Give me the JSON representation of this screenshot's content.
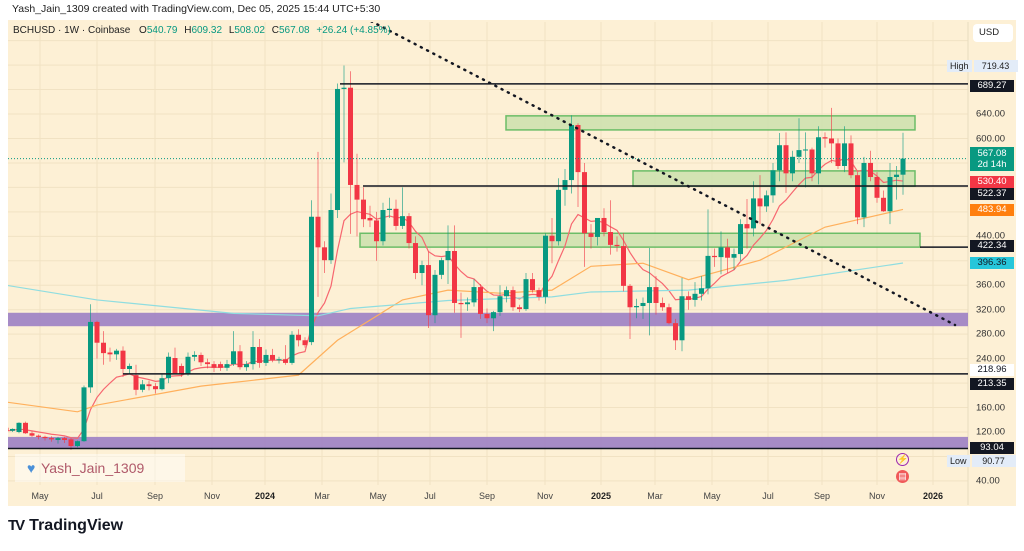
{
  "credit": "Yash_Jain_1309 created with TradingView.com, Dec 05, 2025 15:44 UTC+5:30",
  "legend": {
    "symbol": "BCHUSD · 1W · Coinbase",
    "open_label": "O",
    "open": "540.79",
    "high_label": "H",
    "high": "609.32",
    "low_label": "L",
    "low": "508.02",
    "close_label": "C",
    "close": "567.08",
    "change": "+26.24 (+4.85%)"
  },
  "currency_button": "USD",
  "watermark": "Yash_Jain_1309",
  "brand": "TradingView",
  "colors": {
    "up": "#089981",
    "down": "#f23645",
    "background": "#fdf0d5",
    "ema_fast": "#f7666f",
    "ema_mid": "#ffb05c",
    "ma_long": "#8fdde0",
    "zone_purple": "#9c7fc4",
    "zone_green": "#cfe2b0"
  },
  "price_axis": {
    "ticks": [
      "640.00",
      "600.00",
      "440.00",
      "360.00",
      "320.00",
      "280.00",
      "240.00",
      "160.00",
      "120.00",
      "40.00"
    ]
  },
  "time_axis": {
    "ticks": [
      "May",
      "Jul",
      "Sep",
      "Nov",
      "2024",
      "Mar",
      "May",
      "Jul",
      "Sep",
      "Nov",
      "2025",
      "Mar",
      "May",
      "Jul",
      "Sep",
      "Nov",
      "2026"
    ]
  },
  "price_labels": {
    "high_tag": "High",
    "high_value": "719.43",
    "low_tag": "Low",
    "low_value": "90.77",
    "level_689": "689.27",
    "last_price": "567.08",
    "countdown": "2d 14h",
    "ema_fast": "530.40",
    "level_522": "522.37",
    "ema_mid": "483.94",
    "level_422": "422.34",
    "ma_long": "396.36",
    "level_219": "218.96",
    "level_213": "213.35",
    "level_93": "93.04"
  },
  "chart_data": {
    "type": "candlestick",
    "title": "BCHUSD · 1W · Coinbase",
    "interval": "1W",
    "ylim": [
      40,
      760
    ],
    "grid": true,
    "candles_ohlc": [
      [
        127,
        130,
        119,
        122
      ],
      [
        122,
        126,
        120,
        125
      ],
      [
        120,
        136,
        118,
        135
      ],
      [
        135,
        137,
        117,
        118
      ],
      [
        118,
        121,
        112,
        114
      ],
      [
        114,
        116,
        108,
        112
      ],
      [
        112,
        114,
        106,
        110
      ],
      [
        110,
        113,
        104,
        108
      ],
      [
        107,
        112,
        101,
        110
      ],
      [
        110,
        112,
        102,
        107
      ],
      [
        108,
        110,
        90.77,
        97
      ],
      [
        97,
        106,
        95,
        105
      ],
      [
        105,
        196,
        104,
        193
      ],
      [
        193,
        329,
        184,
        300
      ],
      [
        300,
        302,
        240,
        266
      ],
      [
        266,
        285,
        230,
        249
      ],
      [
        250,
        258,
        235,
        247
      ],
      [
        247,
        256,
        238,
        253
      ],
      [
        253,
        260,
        210,
        223
      ],
      [
        223,
        232,
        215,
        228
      ],
      [
        213,
        230,
        180,
        189
      ],
      [
        189,
        205,
        185,
        198
      ],
      [
        198,
        204,
        188,
        195
      ],
      [
        195,
        200,
        183,
        190
      ],
      [
        190,
        215,
        188,
        208
      ],
      [
        208,
        250,
        200,
        243
      ],
      [
        241,
        258,
        214,
        216
      ],
      [
        228,
        232,
        210,
        215
      ],
      [
        215,
        250,
        212,
        243
      ],
      [
        243,
        252,
        236,
        246
      ],
      [
        246,
        250,
        228,
        234
      ],
      [
        234,
        240,
        224,
        231
      ],
      [
        231,
        236,
        218,
        225
      ],
      [
        231,
        235,
        220,
        225
      ],
      [
        225,
        238,
        220,
        231
      ],
      [
        231,
        285,
        228,
        252
      ],
      [
        252,
        262,
        222,
        226
      ],
      [
        226,
        236,
        220,
        231
      ],
      [
        231,
        285,
        222,
        259
      ],
      [
        259,
        272,
        225,
        233
      ],
      [
        233,
        255,
        228,
        246
      ],
      [
        246,
        256,
        234,
        238
      ],
      [
        238,
        243,
        232,
        239
      ],
      [
        239,
        262,
        230,
        233
      ],
      [
        233,
        285,
        230,
        279
      ],
      [
        279,
        288,
        260,
        270
      ],
      [
        270,
        275,
        258,
        262
      ],
      [
        267,
        499,
        262,
        472
      ],
      [
        472,
        578,
        341,
        422
      ],
      [
        422,
        432,
        380,
        401
      ],
      [
        401,
        510,
        395,
        483
      ],
      [
        483,
        690,
        470,
        681
      ],
      [
        681,
        719.43,
        561,
        683
      ],
      [
        683,
        710,
        444,
        524
      ],
      [
        524,
        575,
        440,
        500
      ],
      [
        500,
        520,
        455,
        468
      ],
      [
        470,
        490,
        455,
        466
      ],
      [
        466,
        480,
        400,
        432
      ],
      [
        432,
        495,
        425,
        483
      ],
      [
        483,
        503,
        470,
        485
      ],
      [
        485,
        500,
        450,
        457
      ],
      [
        457,
        520,
        452,
        473
      ],
      [
        473,
        478,
        420,
        429
      ],
      [
        429,
        440,
        370,
        380
      ],
      [
        380,
        400,
        360,
        393
      ],
      [
        393,
        415,
        290,
        311
      ],
      [
        311,
        385,
        298,
        377
      ],
      [
        377,
        405,
        370,
        401
      ],
      [
        401,
        458,
        362,
        416
      ],
      [
        416,
        458,
        315,
        331
      ],
      [
        331,
        348,
        274,
        329
      ],
      [
        329,
        340,
        318,
        332
      ],
      [
        332,
        370,
        325,
        357
      ],
      [
        357,
        362,
        305,
        313
      ],
      [
        313,
        322,
        298,
        306
      ],
      [
        306,
        318,
        285,
        316
      ],
      [
        316,
        360,
        310,
        342
      ],
      [
        342,
        358,
        332,
        352
      ],
      [
        352,
        358,
        318,
        324
      ],
      [
        324,
        328,
        316,
        321
      ],
      [
        321,
        380,
        318,
        370
      ],
      [
        370,
        380,
        348,
        352
      ],
      [
        352,
        356,
        335,
        341
      ],
      [
        341,
        445,
        330,
        441
      ],
      [
        441,
        470,
        396,
        432
      ],
      [
        432,
        535,
        425,
        516
      ],
      [
        516,
        550,
        490,
        532
      ],
      [
        532,
        638,
        510,
        622
      ],
      [
        622,
        625,
        488,
        545
      ],
      [
        545,
        560,
        390,
        445
      ],
      [
        445,
        460,
        420,
        439
      ],
      [
        439,
        470,
        425,
        470
      ],
      [
        470,
        486,
        440,
        447
      ],
      [
        447,
        499,
        410,
        426
      ],
      [
        426,
        440,
        415,
        424
      ],
      [
        424,
        445,
        350,
        359
      ],
      [
        359,
        362,
        272,
        324
      ],
      [
        324,
        338,
        306,
        326
      ],
      [
        326,
        340,
        305,
        331
      ],
      [
        331,
        421,
        278,
        357
      ],
      [
        357,
        375,
        312,
        331
      ],
      [
        331,
        340,
        318,
        324
      ],
      [
        324,
        330,
        296,
        298
      ],
      [
        298,
        305,
        254,
        270
      ],
      [
        270,
        372,
        252,
        342
      ],
      [
        342,
        350,
        320,
        336
      ],
      [
        336,
        365,
        325,
        346
      ],
      [
        346,
        375,
        335,
        355
      ],
      [
        355,
        484,
        345,
        408
      ],
      [
        408,
        420,
        390,
        406
      ],
      [
        406,
        448,
        378,
        422
      ],
      [
        422,
        436,
        380,
        405
      ],
      [
        405,
        420,
        385,
        411
      ],
      [
        411,
        468,
        400,
        460
      ],
      [
        460,
        501,
        420,
        453
      ],
      [
        453,
        530,
        440,
        502
      ],
      [
        502,
        540,
        460,
        489
      ],
      [
        489,
        515,
        480,
        507
      ],
      [
        507,
        560,
        495,
        548
      ],
      [
        548,
        609,
        530,
        589
      ],
      [
        589,
        610,
        511,
        543
      ],
      [
        543,
        580,
        530,
        570
      ],
      [
        570,
        633,
        560,
        581
      ],
      [
        581,
        610,
        520,
        582
      ],
      [
        582,
        585,
        530,
        543
      ],
      [
        543,
        620,
        525,
        602
      ],
      [
        602,
        610,
        585,
        600
      ],
      [
        600,
        650,
        560,
        592
      ],
      [
        592,
        600,
        550,
        555
      ],
      [
        555,
        620,
        545,
        592
      ],
      [
        592,
        605,
        535,
        540
      ],
      [
        540,
        545,
        460,
        471
      ],
      [
        471,
        570,
        455,
        560
      ],
      [
        560,
        580,
        530,
        537
      ],
      [
        537,
        545,
        495,
        503
      ],
      [
        503,
        515,
        480,
        481
      ],
      [
        481,
        560,
        460,
        537
      ],
      [
        537,
        555,
        500,
        540.79
      ],
      [
        540.79,
        609.32,
        508.02,
        567.08
      ]
    ],
    "moving_averages": [
      {
        "value_last": 530.4,
        "color": "#f7666f"
      },
      {
        "value_last": 483.94,
        "color": "#ffb05c",
        "samples": [
          [
            0,
            169
          ],
          [
            11,
            153
          ],
          [
            14,
            164
          ],
          [
            30,
            195
          ],
          [
            45,
            213
          ],
          [
            51,
            270
          ],
          [
            61,
            336
          ],
          [
            68,
            352
          ],
          [
            76,
            347
          ],
          [
            84,
            352
          ],
          [
            90,
            391
          ],
          [
            98,
            396
          ],
          [
            105,
            369
          ],
          [
            116,
            401
          ],
          [
            126,
            455
          ],
          [
            138,
            483.94
          ]
        ]
      },
      {
        "value_last": 396.36,
        "color": "#8fdde0",
        "samples": [
          [
            0,
            360
          ],
          [
            14,
            336
          ],
          [
            35,
            314
          ],
          [
            48,
            310
          ],
          [
            53,
            322
          ],
          [
            68,
            335
          ],
          [
            84,
            341
          ],
          [
            90,
            349
          ],
          [
            105,
            352
          ],
          [
            120,
            368
          ],
          [
            138,
            396.36
          ]
        ]
      }
    ],
    "horizontal_levels": [
      689.27,
      522.37,
      422.34,
      215,
      93.04
    ],
    "zones_purple": [
      [
        293,
        315
      ],
      [
        93.04,
        112
      ]
    ],
    "zones_green": [
      [
        614,
        637
      ],
      [
        522,
        547
      ],
      [
        422.34,
        445
      ]
    ],
    "trendline_prices": [
      797,
      295
    ],
    "last_price": 567.08,
    "high": 719.43,
    "low": 90.77
  }
}
